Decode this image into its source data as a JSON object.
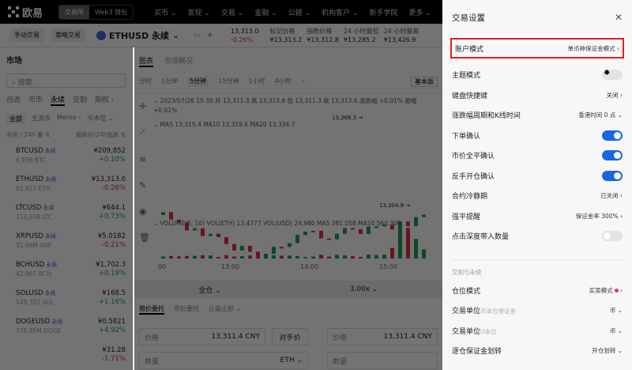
{
  "header": {
    "logo": "欧易",
    "seg": [
      "交易所",
      "Web3 钱包"
    ],
    "nav": [
      "买币 ⌄",
      "发现 ⌄",
      "交易 ⌄",
      "金融 ⌄",
      "公链 ⌄",
      "机构客户 ⌄",
      "新手学院",
      "更多 ⌄"
    ]
  },
  "subheader": {
    "chips": [
      "手动交易",
      "策略交易"
    ],
    "symbol": "ETHUSD 永续",
    "price": "13,313.0",
    "change": "-0.26%",
    "stats": [
      {
        "label": "标记价格",
        "value": "¥13,313.2"
      },
      {
        "label": "指数价格",
        "value": "¥13,312.8"
      },
      {
        "label": "24 小时最低",
        "value": "¥13,285.2"
      },
      {
        "label": "24 小时最高",
        "value": "¥13,426.9"
      }
    ]
  },
  "market": {
    "title": "市场",
    "search_placeholder": "搜索",
    "tabs": [
      "自选",
      "币币",
      "永续",
      "交割",
      "期权 ›"
    ],
    "filters": [
      "全部",
      "主流币",
      "Meme ›",
      "币本位 ⌄"
    ],
    "sort_left": "名称 / 24h 量 ⇅",
    "sort_right": "最新价/24h涨跌 ⇅",
    "tag": "永续",
    "items": [
      {
        "sym": "BTCUSD",
        "vol": "6,938 BTC",
        "price": "¥209,852",
        "chg": "+0.10%",
        "up": true
      },
      {
        "sym": "ETHUSD",
        "vol": "51,827 ETH",
        "price": "¥13,313.0",
        "chg": "-0.26%",
        "up": false
      },
      {
        "sym": "LTCUSD",
        "vol": "212,598 LTC",
        "price": "¥644.1",
        "chg": "+0.73%",
        "up": true
      },
      {
        "sym": "XRPUSD",
        "vol": "31.66M XRP",
        "price": "¥5.0182",
        "chg": "-0.21%",
        "up": false
      },
      {
        "sym": "BCHUSD",
        "vol": "42,967 BCH",
        "price": "¥1,702.3",
        "chg": "+0.19%",
        "up": true
      },
      {
        "sym": "SOLUSD",
        "vol": "149,702 SOL",
        "price": "¥168.5",
        "chg": "+1.16%",
        "up": true
      },
      {
        "sym": "DOGEUSD",
        "vol": "731.95M DOGE",
        "price": "¥0.5821",
        "chg": "+4.92%",
        "up": true
      },
      {
        "sym": "",
        "vol": "",
        "price": "¥31.28",
        "chg": "-1.71%",
        "up": false
      }
    ]
  },
  "chart": {
    "tabs": [
      "图表",
      "市场概况"
    ],
    "intervals": [
      "分时",
      "1分钟",
      "5分钟",
      "15分钟",
      "1小时",
      "4小时",
      "⌄"
    ],
    "basic": "基本版",
    "ohlc": "⌄ 2023/07/26 15:30  开 13,311.3  高 13,313.6  低 13,311.3  收 13,313.6  涨跌幅 +0.01%  振幅 +0.01%",
    "ma": "⌄ MA5 13,315.4  MA10 13,319.6  MA20 13,334.7",
    "high_label": "13,368.3 →",
    "low_label": "13,304.8 →",
    "vol": "⌄ VOLUME(5, 10)  VOL(ETH) 13.4777  VOL(USD) 24,980  MA5 381.058  MA10 560.300",
    "times": [
      "00",
      "13:00",
      "14:00",
      "15:00"
    ]
  },
  "order": {
    "margin": "全仓 ⌄",
    "leverage": "3.00x ⌄",
    "tabs": [
      "限价委托",
      "市价委托",
      "止盈止损 ⌄"
    ],
    "price_label": "价格",
    "price_value": "13,311.4 CNY",
    "counter": "对手价",
    "qty_label": "数量",
    "qty_unit": "ETH ⌄"
  },
  "drawer": {
    "title": "交易设置",
    "close": "✕",
    "account": {
      "label": "账户模式",
      "value": "单币种保证金模式 ›"
    },
    "rows": [
      {
        "label": "主题模式",
        "type": "theme"
      },
      {
        "label": "键盘快捷键",
        "value": "关闭 ›"
      },
      {
        "label": "涨跌幅周期和K线时间",
        "value": "香港时间 0 点 ⌄"
      },
      {
        "label": "下单确认",
        "type": "toggle",
        "on": true
      },
      {
        "label": "市价全平确认",
        "type": "toggle",
        "on": true
      },
      {
        "label": "反手开仓确认",
        "type": "toggle",
        "on": true
      },
      {
        "label": "合约冷静期",
        "value": "已关闭 ›"
      },
      {
        "label": "强平提醒",
        "value": "保证金率 300% ›"
      },
      {
        "label": "点击深度带入数量",
        "type": "toggle",
        "on": false
      }
    ],
    "section": "交割与永续",
    "rows2": [
      {
        "label": "仓位模式",
        "value": "买卖模式",
        "dot": true
      },
      {
        "label": "交易单位",
        "sub": "币本位保证金",
        "value": "币 ⌄"
      },
      {
        "label": "交易单位",
        "sub": "U本位",
        "value": "币 ⌄"
      },
      {
        "label": "逐仓保证金划转",
        "value": "开仓划转 ⌄"
      }
    ]
  },
  "colors": {
    "up": "#1f9d55",
    "down": "#e0303e",
    "accent": "#1a66e0",
    "highlight": "#e02020"
  }
}
